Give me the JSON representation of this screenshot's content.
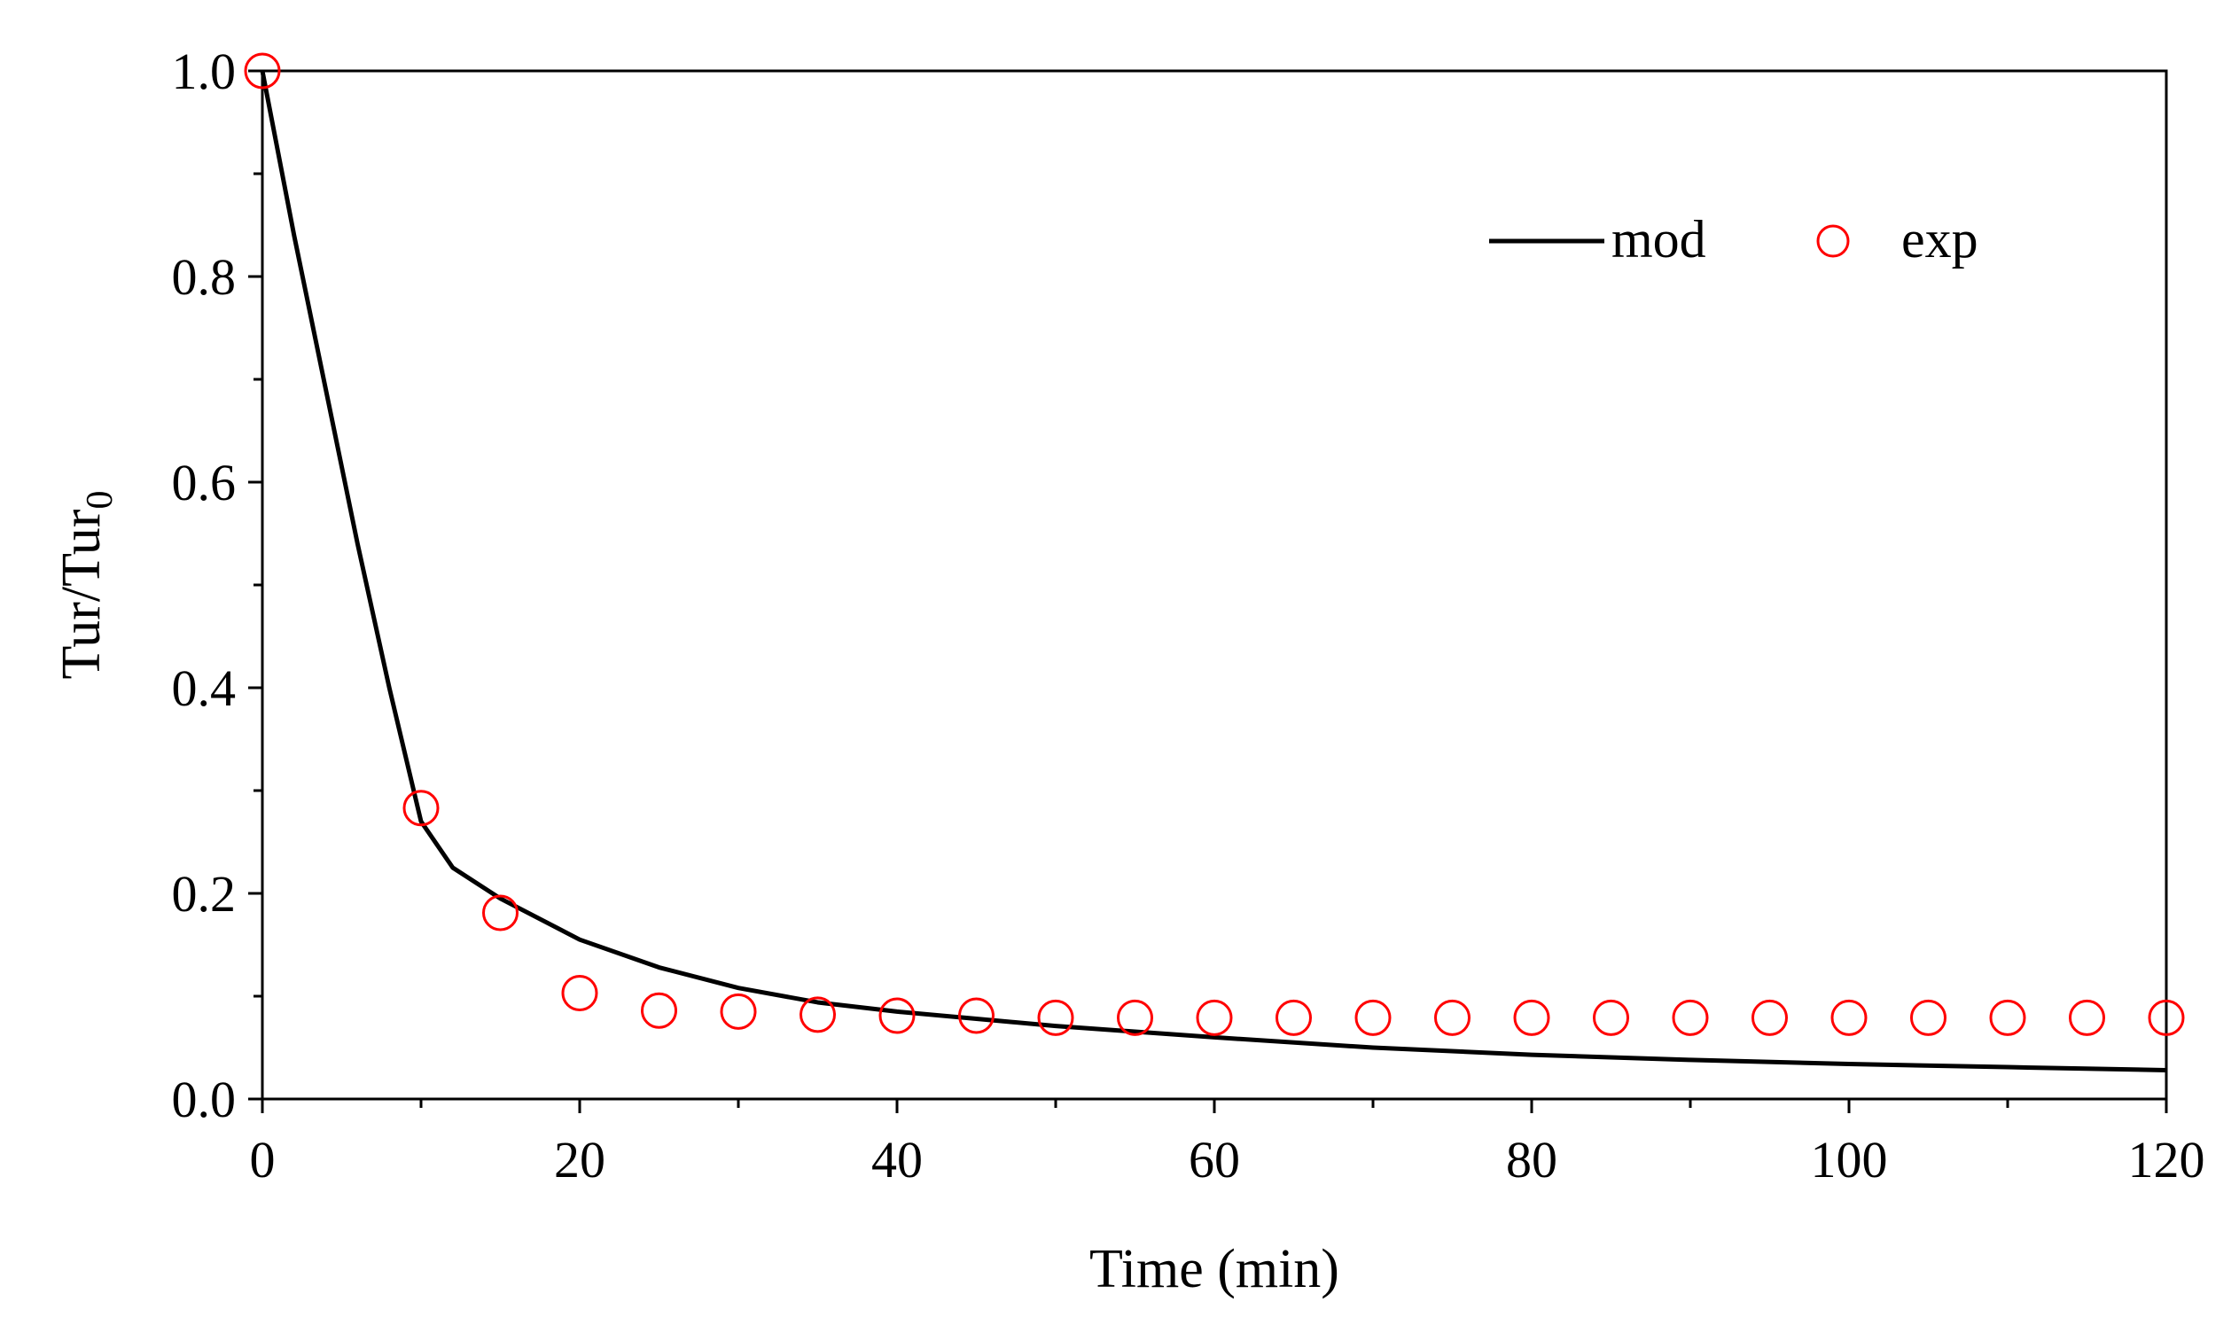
{
  "chart_data": {
    "type": "line",
    "title": "",
    "xlabel": "Time (min)",
    "ylabel": {
      "main": "Tur/Tur",
      "subscript": "0"
    },
    "xlim": [
      0,
      120
    ],
    "ylim": [
      0,
      1.0
    ],
    "xticks": [
      0,
      20,
      40,
      60,
      80,
      100,
      120
    ],
    "xtick_labels": [
      "0",
      "20",
      "40",
      "60",
      "80",
      "100",
      "120"
    ],
    "yticks": [
      0.0,
      0.2,
      0.4,
      0.6,
      0.8,
      1.0
    ],
    "ytick_labels": [
      "0.0",
      "0.2",
      "0.4",
      "0.6",
      "0.8",
      "1.0"
    ],
    "grid": false,
    "legend_position": "top-right",
    "series": [
      {
        "name": "mod",
        "kind": "line",
        "color": "#000000",
        "x": [
          0,
          2,
          4,
          6,
          8,
          10,
          12,
          15,
          20,
          25,
          30,
          35,
          40,
          45,
          50,
          60,
          70,
          80,
          90,
          100,
          110,
          120
        ],
        "y": [
          1.0,
          0.84,
          0.69,
          0.54,
          0.4,
          0.27,
          0.225,
          0.195,
          0.155,
          0.128,
          0.108,
          0.094,
          0.085,
          0.078,
          0.071,
          0.06,
          0.05,
          0.043,
          0.038,
          0.034,
          0.031,
          0.028
        ]
      },
      {
        "name": "exp",
        "kind": "scatter",
        "color": "#ff0000",
        "x": [
          0,
          10,
          15,
          20,
          25,
          30,
          35,
          40,
          45,
          50,
          55,
          60,
          65,
          70,
          75,
          80,
          85,
          90,
          95,
          100,
          105,
          110,
          115,
          120
        ],
        "y": [
          1.0,
          0.283,
          0.181,
          0.103,
          0.086,
          0.085,
          0.082,
          0.081,
          0.081,
          0.079,
          0.079,
          0.079,
          0.079,
          0.079,
          0.079,
          0.079,
          0.079,
          0.079,
          0.079,
          0.079,
          0.079,
          0.079,
          0.079,
          0.079
        ]
      }
    ]
  }
}
